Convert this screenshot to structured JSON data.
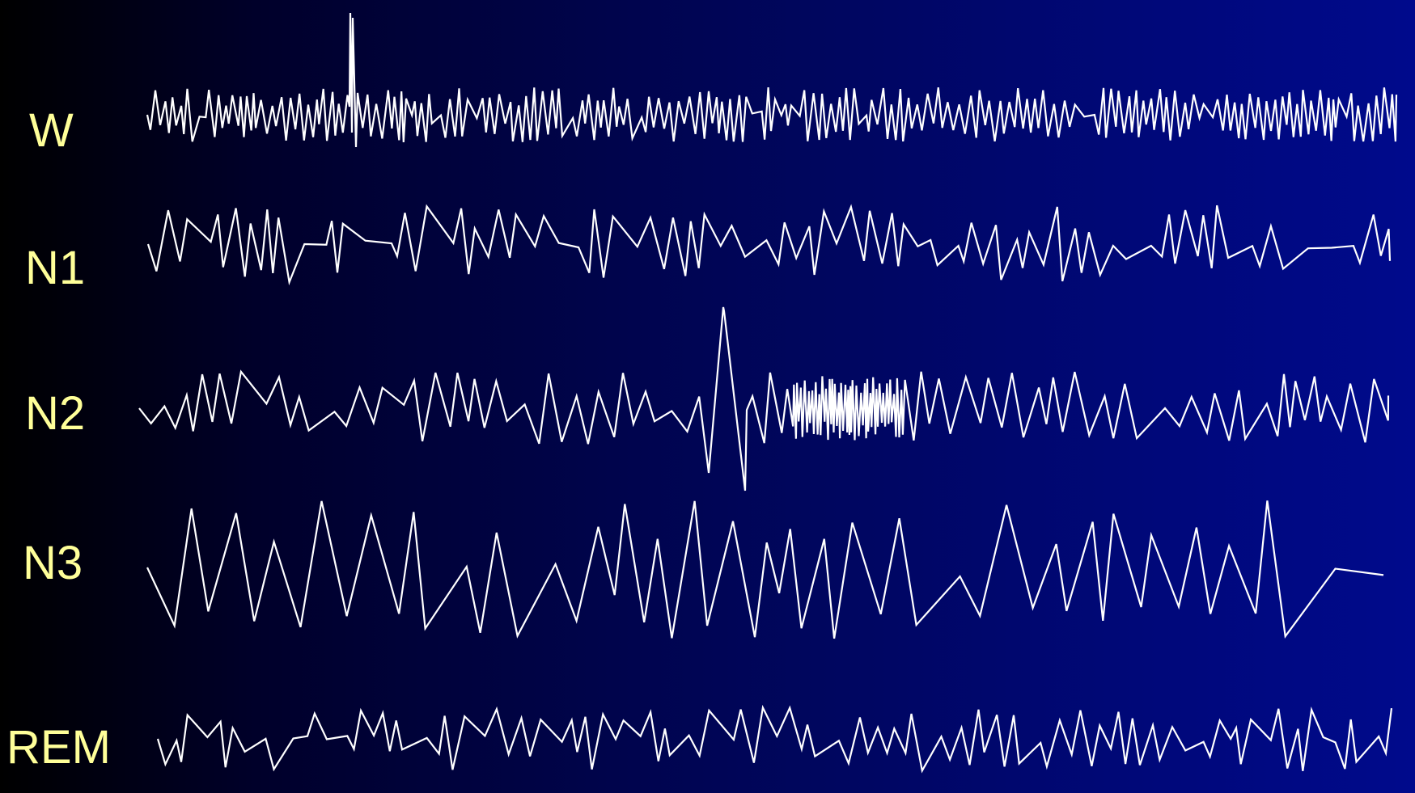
{
  "colors": {
    "label": "#ffff99",
    "trace": "#ffffff",
    "background_left": "#000000",
    "background_right": "#000a8c"
  },
  "stages": [
    {
      "id": "w",
      "label": "W"
    },
    {
      "id": "n1",
      "label": "N1"
    },
    {
      "id": "n2",
      "label": "N2"
    },
    {
      "id": "n3",
      "label": "N3"
    },
    {
      "id": "rem",
      "label": "REM"
    }
  ]
}
